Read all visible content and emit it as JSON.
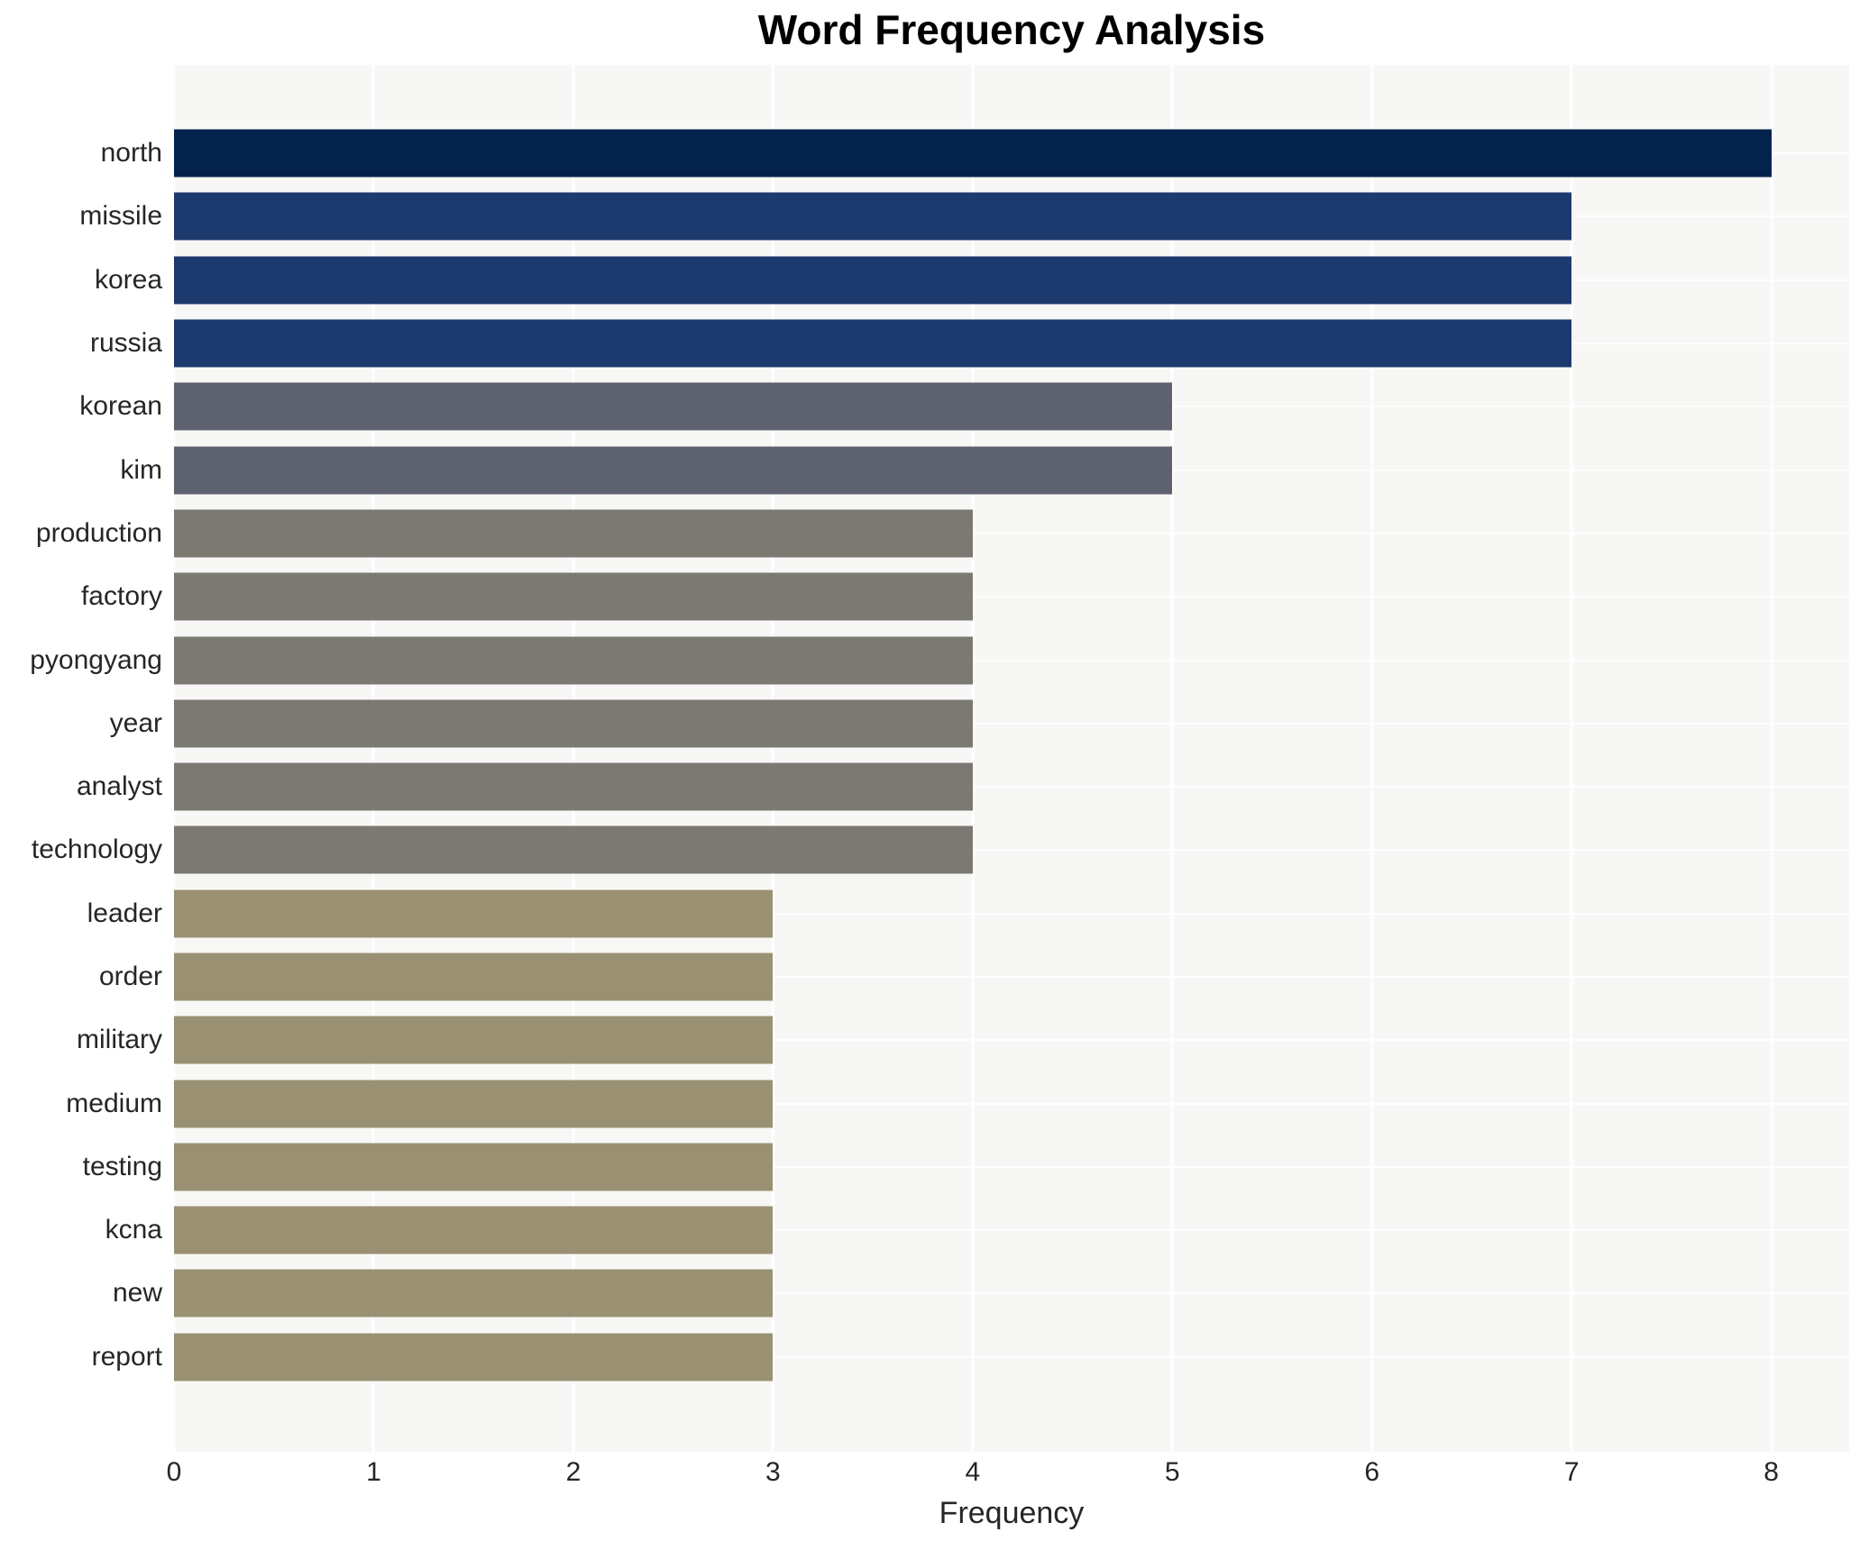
{
  "title": "Word Frequency Analysis",
  "chart_data": {
    "type": "bar",
    "orientation": "horizontal",
    "title": "Word Frequency Analysis",
    "xlabel": "Frequency",
    "ylabel": "",
    "categories": [
      "north",
      "missile",
      "korea",
      "russia",
      "korean",
      "kim",
      "production",
      "factory",
      "pyongyang",
      "year",
      "analyst",
      "technology",
      "leader",
      "order",
      "military",
      "medium",
      "testing",
      "kcna",
      "new",
      "report"
    ],
    "values": [
      8,
      7,
      7,
      7,
      5,
      5,
      4,
      4,
      4,
      4,
      4,
      4,
      3,
      3,
      3,
      3,
      3,
      3,
      3,
      3
    ],
    "bar_colors": [
      "#03234d",
      "#1d3a6e",
      "#1d3a6e",
      "#1d3a6e",
      "#5e626e",
      "#5e626e",
      "#7c7973",
      "#7c7973",
      "#7c7973",
      "#7c7973",
      "#7c7973",
      "#7c7973",
      "#9a9173",
      "#9a9173",
      "#9a9173",
      "#9a9173",
      "#9a9173",
      "#9a9173",
      "#9a9173",
      "#9a9173"
    ],
    "xlim": [
      0,
      8.39
    ],
    "xticks": [
      0,
      1,
      2,
      3,
      4,
      5,
      6,
      7,
      8
    ],
    "grid": true,
    "legend": "none",
    "plot_bg": "#f7f7f5",
    "grid_color": "#ffffff",
    "text_color": "#262626"
  }
}
